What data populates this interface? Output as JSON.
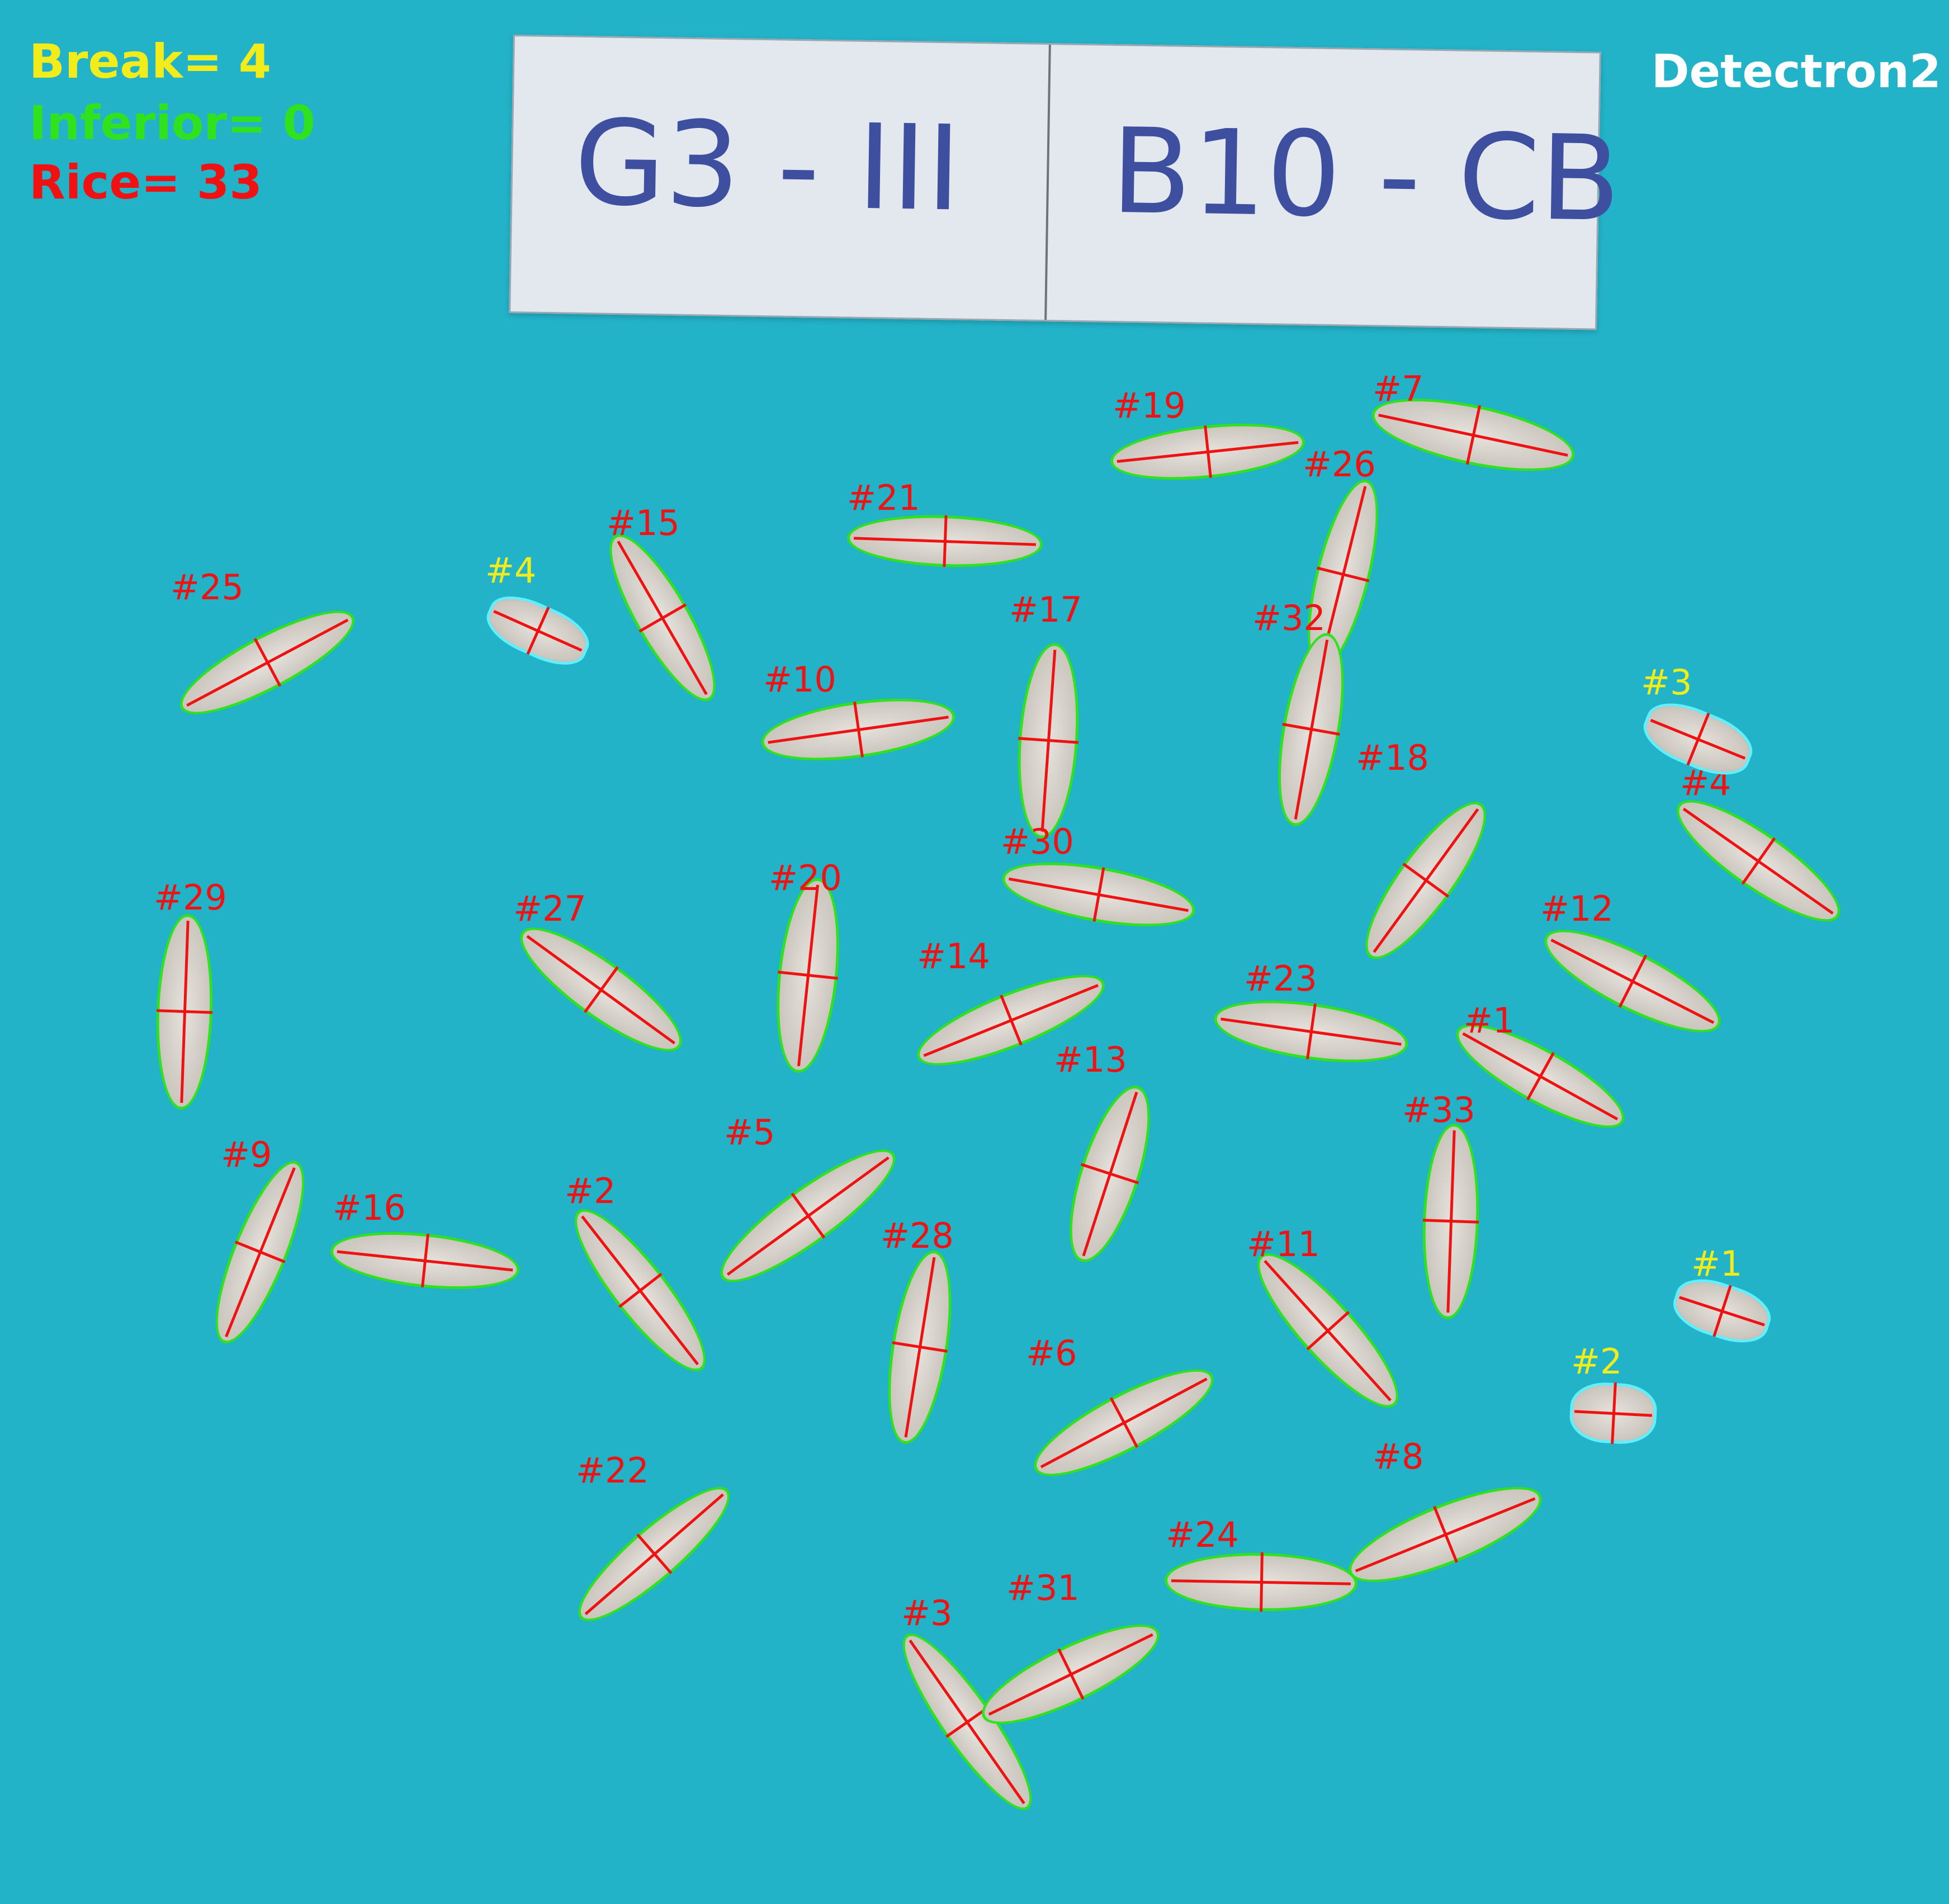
{
  "stats": {
    "break_label": "Break= 4",
    "inferior_label": "Inferior= 0",
    "rice_label": "Rice= 33"
  },
  "model_name": "Detectron2",
  "sample_label": {
    "left": "G3 - III",
    "right": "B10 - CB"
  },
  "colors": {
    "background": "#22b3c9",
    "break_text": "#f2ec1a",
    "inferior_text": "#2fe21d",
    "rice_text": "#f01212",
    "rice_outline": "#2fe21d",
    "break_outline": "#5ff0ff",
    "axis_line": "#f01212",
    "model_text": "#ffffff",
    "card_ink": "#3e4fa0"
  },
  "grains": [
    {
      "id": "#1",
      "type": "rice"
    },
    {
      "id": "#2",
      "type": "rice"
    },
    {
      "id": "#3",
      "type": "rice"
    },
    {
      "id": "#4",
      "type": "rice"
    },
    {
      "id": "#5",
      "type": "rice"
    },
    {
      "id": "#6",
      "type": "rice"
    },
    {
      "id": "#7",
      "type": "rice"
    },
    {
      "id": "#8",
      "type": "rice"
    },
    {
      "id": "#9",
      "type": "rice"
    },
    {
      "id": "#10",
      "type": "rice"
    },
    {
      "id": "#11",
      "type": "rice"
    },
    {
      "id": "#12",
      "type": "rice"
    },
    {
      "id": "#13",
      "type": "rice"
    },
    {
      "id": "#14",
      "type": "rice"
    },
    {
      "id": "#15",
      "type": "rice"
    },
    {
      "id": "#16",
      "type": "rice"
    },
    {
      "id": "#17",
      "type": "rice"
    },
    {
      "id": "#18",
      "type": "rice"
    },
    {
      "id": "#19",
      "type": "rice"
    },
    {
      "id": "#20",
      "type": "rice"
    },
    {
      "id": "#21",
      "type": "rice"
    },
    {
      "id": "#22",
      "type": "rice"
    },
    {
      "id": "#23",
      "type": "rice"
    },
    {
      "id": "#24",
      "type": "rice"
    },
    {
      "id": "#25",
      "type": "rice"
    },
    {
      "id": "#26",
      "type": "rice"
    },
    {
      "id": "#27",
      "type": "rice"
    },
    {
      "id": "#28",
      "type": "rice"
    },
    {
      "id": "#29",
      "type": "rice"
    },
    {
      "id": "#30",
      "type": "rice"
    },
    {
      "id": "#31",
      "type": "rice"
    },
    {
      "id": "#32",
      "type": "rice"
    },
    {
      "id": "#33",
      "type": "rice"
    },
    {
      "id": "#1",
      "type": "break"
    },
    {
      "id": "#2",
      "type": "break"
    },
    {
      "id": "#3",
      "type": "break"
    },
    {
      "id": "#4",
      "type": "break"
    }
  ]
}
